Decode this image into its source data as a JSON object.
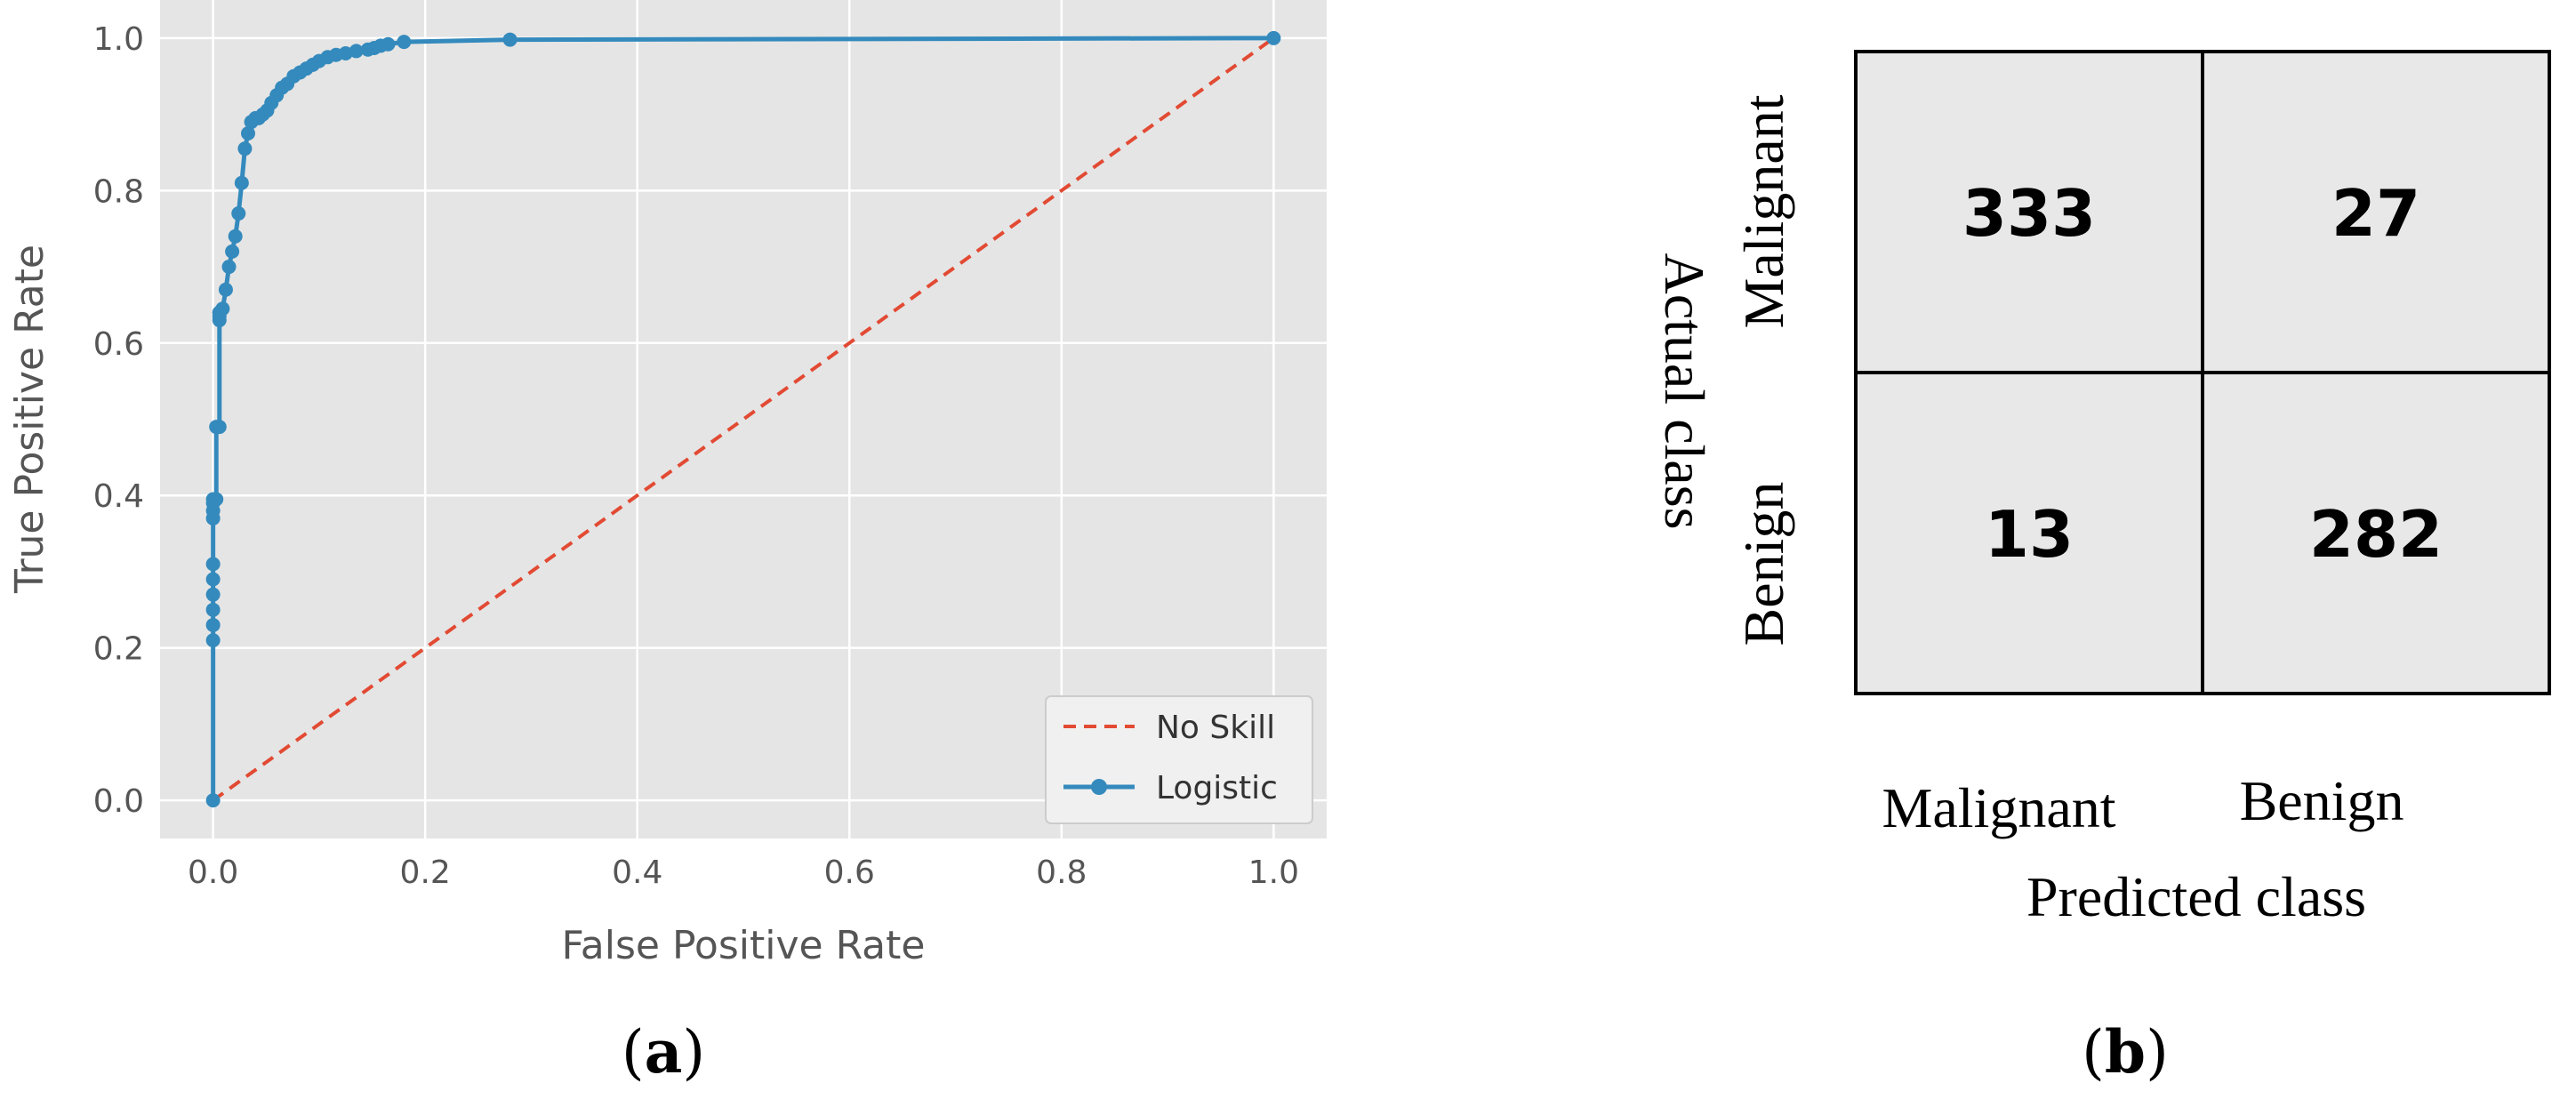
{
  "colors": {
    "plot_bg": "#e5e5e5",
    "grid": "#ffffff",
    "no_skill": "#e24a33",
    "logistic": "#348abd",
    "cell_bg": "#e8e8e8",
    "cell_border": "#000000"
  },
  "panel_a_label": "a",
  "panel_b_label": "b",
  "chart_data": [
    {
      "type": "line",
      "xlabel": "False Positive Rate",
      "ylabel": "True Positive Rate",
      "xlim": [
        -0.05,
        1.05
      ],
      "ylim": [
        -0.05,
        1.05
      ],
      "xticks": [
        0.0,
        0.2,
        0.4,
        0.6,
        0.8,
        1.0
      ],
      "yticks": [
        0.0,
        0.2,
        0.4,
        0.6,
        0.8,
        1.0
      ],
      "xtick_labels": [
        "0.0",
        "0.2",
        "0.4",
        "0.6",
        "0.8",
        "1.0"
      ],
      "ytick_labels": [
        "0.0",
        "0.2",
        "0.4",
        "0.6",
        "0.8",
        "1.0"
      ],
      "grid": true,
      "legend_position": "lower-right",
      "series": [
        {
          "name": "No Skill",
          "style": "dashed",
          "x": [
            0.0,
            1.0
          ],
          "y": [
            0.0,
            1.0
          ]
        },
        {
          "name": "Logistic",
          "style": "solid-markers",
          "x": [
            0.0,
            0.0,
            0.0,
            0.0,
            0.0,
            0.0,
            0.0,
            0.0,
            0.0,
            0.0,
            0.0,
            0.003,
            0.003,
            0.006,
            0.006,
            0.006,
            0.006,
            0.006,
            0.009,
            0.012,
            0.015,
            0.018,
            0.021,
            0.024,
            0.027,
            0.03,
            0.033,
            0.036,
            0.04,
            0.043,
            0.047,
            0.051,
            0.055,
            0.06,
            0.065,
            0.07,
            0.076,
            0.082,
            0.088,
            0.094,
            0.1,
            0.108,
            0.116,
            0.125,
            0.135,
            0.146,
            0.152,
            0.158,
            0.165,
            0.18,
            0.28,
            1.0
          ],
          "y": [
            0.0,
            0.21,
            0.23,
            0.25,
            0.27,
            0.29,
            0.31,
            0.37,
            0.38,
            0.39,
            0.395,
            0.395,
            0.49,
            0.49,
            0.63,
            0.64,
            0.635,
            0.64,
            0.645,
            0.67,
            0.7,
            0.72,
            0.74,
            0.77,
            0.81,
            0.855,
            0.875,
            0.89,
            0.895,
            0.895,
            0.9,
            0.905,
            0.915,
            0.925,
            0.935,
            0.94,
            0.95,
            0.955,
            0.96,
            0.965,
            0.97,
            0.975,
            0.978,
            0.98,
            0.983,
            0.985,
            0.987,
            0.99,
            0.992,
            0.995,
            0.998,
            1.0
          ]
        }
      ]
    },
    {
      "type": "table",
      "subtype": "confusion-matrix",
      "row_title": "Actual class",
      "col_title": "Predicted class",
      "row_labels": [
        "Malignant",
        "Benign"
      ],
      "col_labels": [
        "Malignant",
        "Benign"
      ],
      "values": [
        [
          333,
          27
        ],
        [
          13,
          282
        ]
      ]
    }
  ]
}
